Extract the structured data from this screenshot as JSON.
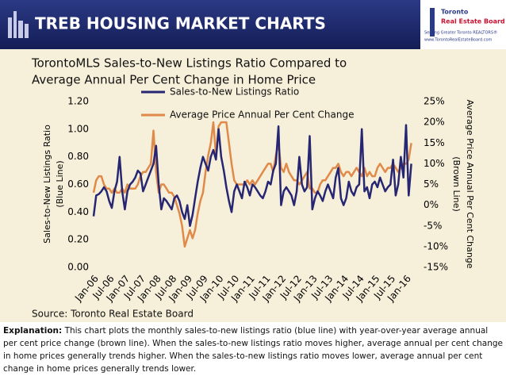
{
  "header": {
    "title": "TREB HOUSING MARKET CHARTS",
    "logo": [
      "Toronto",
      "Real Estate Board"
    ],
    "tagline": "Serving Greater Toronto REALTORS®",
    "url": "www.TorontoRealEstateBoard.com"
  },
  "source": "Source: Toronto Real Estate Board",
  "explanation": {
    "label": "Explanation:",
    "text": "This chart plots the monthly sales-to-new listings ratio (blue line) with year-over-year average annual per cent price change (brown line). When the sales-to-new listings ratio moves higher, average annual per cent change in home prices generally trends higher. When the sales-to-new listings ratio moves lower, average annual per cent change in home prices generally trends lower."
  },
  "chart_data": {
    "type": "line",
    "title": [
      "TorontoMLS Sales-to-New Listings Ratio Compared to",
      "Average Annual Per Cent Change in Home Price"
    ],
    "y_label": [
      "Sales-to-New Listings Ratio",
      "(Blue Line)"
    ],
    "y2_label": [
      "Average Price Annual Per Cent Change",
      "(Brown Line)"
    ],
    "categories": [
      "Jan-06",
      null,
      null,
      null,
      null,
      null,
      "Jul-06",
      null,
      null,
      null,
      null,
      null,
      "Jan-07",
      null,
      null,
      null,
      null,
      null,
      "Jul-07",
      null,
      null,
      null,
      null,
      null,
      "Jan-08",
      null,
      null,
      null,
      null,
      null,
      "Jul-08",
      null,
      null,
      null,
      null,
      null,
      "Jan-09",
      null,
      null,
      null,
      null,
      null,
      "Jul-09",
      null,
      null,
      null,
      null,
      null,
      "Jan-10",
      null,
      null,
      null,
      null,
      null,
      "Jul-10",
      null,
      null,
      null,
      null,
      null,
      "Jan-11",
      null,
      null,
      null,
      null,
      null,
      "Jul-11",
      null,
      null,
      null,
      null,
      null,
      "Jan-12",
      null,
      null,
      null,
      null,
      null,
      "Jul-12",
      null,
      null,
      null,
      null,
      null,
      "Jan-13",
      null,
      null,
      null,
      null,
      null,
      "Jul-13",
      null,
      null,
      null,
      null,
      null,
      "Jan-14",
      null,
      null,
      null,
      null,
      null,
      "Jul-14",
      null,
      null,
      null,
      null,
      null,
      "Jan-15",
      null,
      null,
      null,
      null,
      null,
      "Jul-15",
      null,
      null,
      null,
      null,
      null,
      "Jan-16",
      null,
      null
    ],
    "series": [
      {
        "name": "Sales-to-New Listings Ratio",
        "color": "#262673",
        "values": [
          0.37,
          0.52,
          0.53,
          0.55,
          0.58,
          0.55,
          0.48,
          0.43,
          0.55,
          0.62,
          0.8,
          0.55,
          0.42,
          0.55,
          0.6,
          0.62,
          0.65,
          0.7,
          0.68,
          0.55,
          0.6,
          0.65,
          0.7,
          0.75,
          0.88,
          0.6,
          0.42,
          0.5,
          0.48,
          0.45,
          0.42,
          0.5,
          0.52,
          0.48,
          0.4,
          0.35,
          0.45,
          0.3,
          0.38,
          0.5,
          0.62,
          0.72,
          0.8,
          0.75,
          0.7,
          0.8,
          0.85,
          0.78,
          1.0,
          0.8,
          0.7,
          0.58,
          0.48,
          0.4,
          0.55,
          0.6,
          0.55,
          0.5,
          0.62,
          0.58,
          0.52,
          0.6,
          0.58,
          0.55,
          0.52,
          0.5,
          0.55,
          0.62,
          0.6,
          0.7,
          0.75,
          1.02,
          0.45,
          0.55,
          0.58,
          0.55,
          0.52,
          0.45,
          0.55,
          0.8,
          0.6,
          0.55,
          0.58,
          0.95,
          0.42,
          0.5,
          0.55,
          0.52,
          0.48,
          0.55,
          0.6,
          0.55,
          0.5,
          0.65,
          0.72,
          0.5,
          0.45,
          0.5,
          0.62,
          0.55,
          0.52,
          0.58,
          0.6,
          1.0,
          0.55,
          0.58,
          0.5,
          0.6,
          0.62,
          0.58,
          0.65,
          0.6,
          0.55,
          0.58,
          0.6,
          0.78,
          0.52,
          0.6,
          0.8,
          0.65,
          1.03,
          0.52,
          0.75
        ]
      },
      {
        "name": "Average Price Annual Per Cent Change",
        "color": "#e08a4a",
        "axis": "y2",
        "values": [
          3,
          6,
          7,
          7,
          5,
          4,
          4,
          3,
          4,
          3,
          3,
          4,
          3,
          5,
          4,
          4,
          4,
          5,
          7,
          8,
          8,
          9,
          10,
          18,
          8,
          3,
          5,
          5,
          4,
          3,
          3,
          2,
          0,
          -2,
          -5,
          -10,
          -8,
          -6,
          -8,
          -6,
          -2,
          1,
          3,
          8,
          12,
          15,
          20,
          12,
          19,
          20,
          20,
          20,
          15,
          10,
          6,
          5,
          5,
          5,
          5,
          6,
          5,
          6,
          5,
          6,
          7,
          8,
          9,
          10,
          10,
          8,
          12,
          15,
          9,
          8,
          10,
          8,
          7,
          6,
          6,
          5,
          6,
          7,
          8,
          4,
          4,
          3,
          3,
          5,
          6,
          6,
          7,
          8,
          9,
          9,
          10,
          8,
          7,
          8,
          8,
          7,
          8,
          9,
          8,
          7,
          9,
          7,
          8,
          7,
          7,
          9,
          10,
          9,
          8,
          9,
          9,
          10,
          9,
          8,
          9,
          10,
          10,
          11,
          15
        ]
      }
    ],
    "ylim": [
      0,
      1.2
    ],
    "yticks": [
      {
        "value": 0,
        "label": "0.00"
      },
      {
        "value": 0.2,
        "label": "0.20"
      },
      {
        "value": 0.4,
        "label": "0.40"
      },
      {
        "value": 0.6,
        "label": "0.60"
      },
      {
        "value": 0.8,
        "label": "0.80"
      },
      {
        "value": 1,
        "label": "1.00"
      },
      {
        "value": 1.2,
        "label": "1.20"
      }
    ],
    "y2lim": [
      -15,
      25
    ],
    "y2ticks": [
      {
        "value": -15,
        "label": "-15%"
      },
      {
        "value": -10,
        "label": "-10%"
      },
      {
        "value": -5,
        "label": "-5%"
      },
      {
        "value": 0,
        "label": "0%"
      },
      {
        "value": 5,
        "label": "5%"
      },
      {
        "value": 10,
        "label": "10%"
      },
      {
        "value": 15,
        "label": "15%"
      },
      {
        "value": 20,
        "label": "20%"
      },
      {
        "value": 25,
        "label": "25%"
      }
    ],
    "grid": false
  }
}
